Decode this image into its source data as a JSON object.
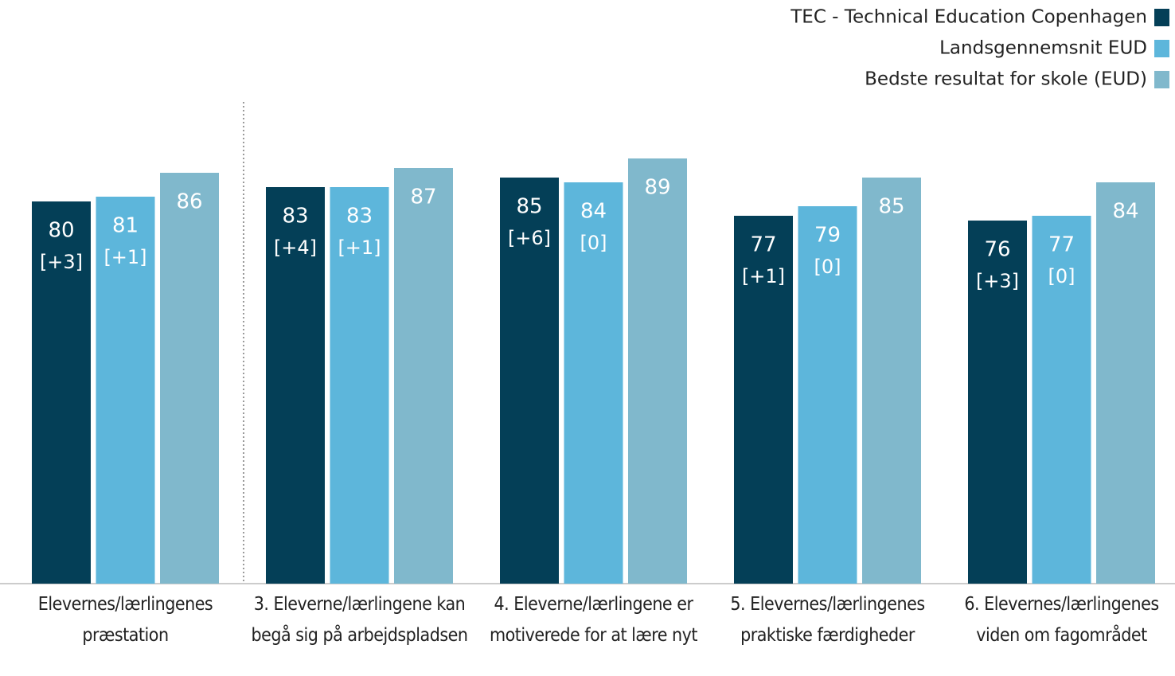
{
  "chart_data": {
    "type": "bar",
    "categories": [
      "Elevernes/lærlingenes præstation",
      "3. Eleverne/lærlingene kan begå sig på arbejdspladsen",
      "4. Eleverne/lærlingene er motiverede for at lære nyt",
      "5. Elevernes/lærlingenes praktiske færdigheder",
      "6. Elevernes/lærlingenes viden om fagområdet"
    ],
    "series": [
      {
        "name": "TEC - Technical Education Copenhagen",
        "color": "#043f57",
        "values": [
          80,
          83,
          85,
          77,
          76
        ],
        "change_labels": [
          "[+3]",
          "[+4]",
          "[+6]",
          "[+1]",
          "[+3]"
        ]
      },
      {
        "name": "Landsgennemsnit EUD",
        "color": "#5db6db",
        "values": [
          81,
          83,
          84,
          79,
          77
        ],
        "change_labels": [
          "[+1]",
          "[+1]",
          "[0]",
          "[0]",
          "[0]"
        ]
      },
      {
        "name": "Bedste resultat for skole (EUD)",
        "color": "#80b8cc",
        "values": [
          86,
          87,
          89,
          85,
          84
        ]
      }
    ],
    "ylim": [
      0,
      100
    ],
    "legend": "top-right"
  }
}
